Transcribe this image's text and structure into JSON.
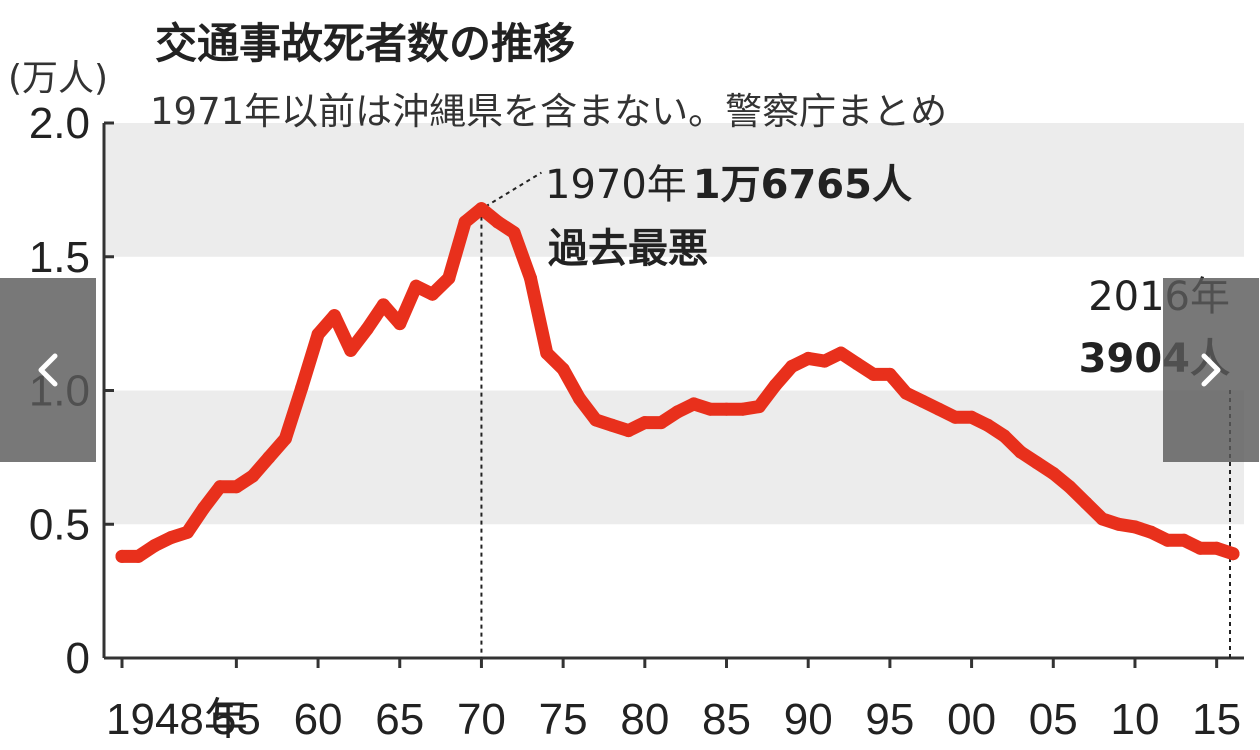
{
  "chart_data": {
    "type": "line",
    "title": "交通事故死者数の推移",
    "subtitle": "1971年以前は沖縄県を含まない。警察庁まとめ",
    "unit_label": "(万人)",
    "ylim": [
      0,
      2.0
    ],
    "yticks": [
      0,
      0.5,
      1.0,
      1.5,
      2.0
    ],
    "ytick_labels": [
      "0",
      "0.5",
      "1.0",
      "1.5",
      "2.0"
    ],
    "xlim": [
      1948,
      2016
    ],
    "xticks": [
      1948,
      1955,
      1960,
      1965,
      1970,
      1975,
      1980,
      1985,
      1990,
      1995,
      2000,
      2005,
      2010,
      2015
    ],
    "xtick_labels": [
      "1948年",
      "55",
      "60",
      "65",
      "70",
      "75",
      "80",
      "85",
      "90",
      "95",
      "00",
      "05",
      "10",
      "15"
    ],
    "series_color": "#e8301c",
    "band_color": "#ececec",
    "grid": "alternating horizontal bands",
    "x": [
      1948,
      1949,
      1950,
      1951,
      1952,
      1953,
      1954,
      1955,
      1956,
      1957,
      1958,
      1959,
      1960,
      1961,
      1962,
      1963,
      1964,
      1965,
      1966,
      1967,
      1968,
      1969,
      1970,
      1971,
      1972,
      1973,
      1974,
      1975,
      1976,
      1977,
      1978,
      1979,
      1980,
      1981,
      1982,
      1983,
      1984,
      1985,
      1986,
      1987,
      1988,
      1989,
      1990,
      1991,
      1992,
      1993,
      1994,
      1995,
      1996,
      1997,
      1998,
      1999,
      2000,
      2001,
      2002,
      2003,
      2004,
      2005,
      2006,
      2007,
      2008,
      2009,
      2010,
      2011,
      2012,
      2013,
      2014,
      2015,
      2016
    ],
    "y": [
      0.38,
      0.38,
      0.42,
      0.45,
      0.47,
      0.56,
      0.64,
      0.64,
      0.68,
      0.75,
      0.82,
      1.01,
      1.21,
      1.28,
      1.15,
      1.23,
      1.32,
      1.25,
      1.39,
      1.36,
      1.42,
      1.63,
      1.68,
      1.63,
      1.59,
      1.42,
      1.14,
      1.08,
      0.97,
      0.89,
      0.87,
      0.85,
      0.88,
      0.88,
      0.92,
      0.95,
      0.93,
      0.93,
      0.93,
      0.94,
      1.02,
      1.09,
      1.12,
      1.11,
      1.14,
      1.1,
      1.06,
      1.06,
      0.99,
      0.96,
      0.93,
      0.9,
      0.9,
      0.87,
      0.83,
      0.77,
      0.73,
      0.69,
      0.64,
      0.58,
      0.52,
      0.5,
      0.49,
      0.47,
      0.44,
      0.44,
      0.41,
      0.41,
      0.39
    ],
    "annotations": [
      {
        "x": 1970,
        "y": 1.68,
        "line1_year": "1970年",
        "line1_value": "1万6765人",
        "line2": "過去最悪"
      },
      {
        "x": 2016,
        "y": 0.39,
        "line1": "2016年",
        "line2": "3904人"
      }
    ]
  },
  "nav": {
    "prev_icon": "chevron-left-icon",
    "next_icon": "chevron-right-icon"
  }
}
